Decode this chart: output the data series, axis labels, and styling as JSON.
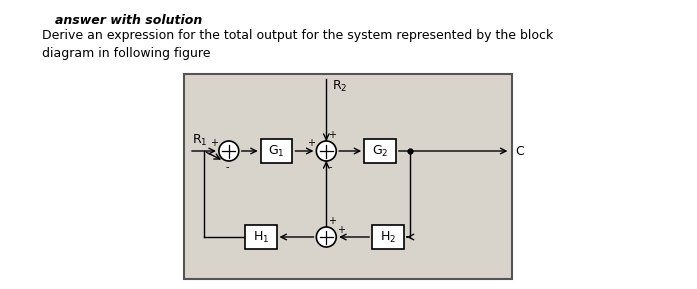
{
  "title_bold": "answer with solution",
  "title_main": "Derive an expression for the total output for the system represented by the block",
  "title_line2": "diagram in following figure",
  "bg_color": "#ffffff",
  "diagram_bg": "#d8d4cc",
  "box_color": "#ffffff",
  "box_edge": "#000000",
  "text_color": "#000000",
  "font_size_title": 9,
  "font_size_label": 8,
  "font_size_sign": 7,
  "sumjunction_r": 0.045,
  "G1_label": "G$_1$",
  "G2_label": "G$_2$",
  "H1_label": "H$_1$",
  "H2_label": "H$_2$",
  "R1_label": "R$_1$",
  "R2_label": "R$_2$",
  "C_label": "C"
}
